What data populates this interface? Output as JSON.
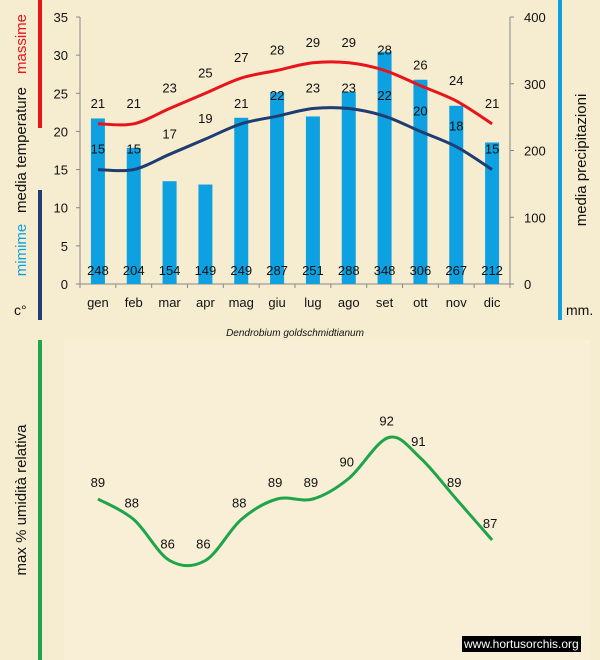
{
  "chart_data": [
    {
      "type": "bar+line",
      "title": "Dendrobium goldschmidtianum",
      "categories": [
        "gen",
        "feb",
        "mar",
        "apr",
        "mag",
        "giu",
        "lug",
        "ago",
        "set",
        "ott",
        "nov",
        "dic"
      ],
      "left_axis": {
        "label_parts": [
          "massime",
          "media  temperature",
          "mimime",
          "c°"
        ],
        "ylim": [
          0,
          35
        ],
        "ticks": [
          0,
          5,
          10,
          15,
          20,
          25,
          30,
          35
        ]
      },
      "right_axis": {
        "label": "media  precipitazioni",
        "unit": "mm.",
        "ylim": [
          0,
          400
        ],
        "ticks": [
          0,
          100,
          200,
          300,
          400
        ]
      },
      "series": [
        {
          "name": "massime",
          "axis": "left",
          "type": "line",
          "color": "#e8141b",
          "values": [
            21,
            21,
            23,
            25,
            27,
            28,
            29,
            29,
            28,
            26,
            24,
            21
          ]
        },
        {
          "name": "mimime",
          "axis": "left",
          "type": "line",
          "color": "#1f3d73",
          "values": [
            15,
            15,
            17,
            19,
            21,
            22,
            23,
            23,
            22,
            20,
            18,
            15
          ]
        },
        {
          "name": "media precipitazioni",
          "axis": "right",
          "type": "bar",
          "color": "#0ea1e2",
          "values": [
            248,
            204,
            154,
            149,
            249,
            287,
            251,
            288,
            348,
            306,
            267,
            212
          ]
        }
      ]
    },
    {
      "type": "line",
      "ylabel": "max  %  umidità relativa",
      "categories": [
        "gen",
        "feb",
        "mar",
        "apr",
        "mag",
        "giu",
        "lug",
        "ago",
        "set",
        "ott",
        "nov",
        "dic"
      ],
      "series": [
        {
          "name": "max % umidità relativa",
          "color": "#1ea44a",
          "values": [
            89,
            88,
            86,
            86,
            88,
            89,
            89,
            90,
            92,
            91,
            89,
            87
          ]
        }
      ]
    }
  ],
  "watermark": "www.hortusorchis.org"
}
